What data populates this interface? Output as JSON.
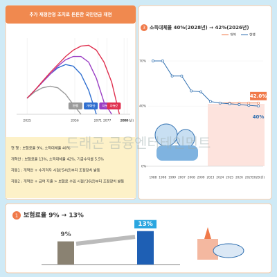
{
  "watermark": "드래곤 금융엔터테인먼트",
  "notes": [
    "현 행 : 보험료율 9%, 소득대체율 40%",
    "개혁안 : 보험료율 13%, 소득대체율 42%, 기금수익률 5.5%",
    "자동1 : 개혁안 + 수지적자 시점('54년)부터 조정장치 발동",
    "자동2 : 개혁안 + 급여 지출 > 보험료 수입 시점('36년)부터 조정장치 발동"
  ],
  "chart_data": [
    {
      "type": "line",
      "title": "추가 재정안정 조치로 튼튼한 국민연금 재현",
      "x": [
        2025,
        2030,
        2035,
        2040,
        2045,
        2050,
        2055,
        2060,
        2065,
        2070,
        2075,
        2080,
        2085
      ],
      "xlim": [
        2020,
        2092
      ],
      "ylim": [
        0,
        95
      ],
      "xticks": [
        2025,
        2056,
        2071,
        2077,
        2088,
        {
          "value": 2090,
          "label": "2090(년)"
        }
      ],
      "series": [
        {
          "name": "현행",
          "color": "#9a9a9a",
          "values": [
            20,
            28,
            33,
            35,
            33,
            25,
            12,
            0,
            null,
            null,
            null,
            null,
            null
          ]
        },
        {
          "name": "개혁안",
          "color": "#2f6fd0",
          "values": [
            20,
            30,
            40,
            50,
            58,
            62,
            60,
            50,
            30,
            0,
            null,
            null,
            null
          ]
        },
        {
          "name": "자동1",
          "color": "#9b3fc4",
          "values": [
            20,
            30,
            40,
            50,
            60,
            68,
            72,
            72,
            65,
            45,
            15,
            0,
            null
          ]
        },
        {
          "name": "자동2",
          "color": "#e0304f",
          "values": [
            20,
            30,
            41,
            52,
            62,
            72,
            80,
            85,
            86,
            80,
            65,
            40,
            0
          ]
        }
      ]
    },
    {
      "type": "line",
      "badge": "3",
      "title": "소득대체율 40%(2028년) → 42%(2026년)",
      "categories": [
        "1988",
        "1998",
        "1999",
        "2007",
        "2008",
        "2009",
        "2023",
        "2024",
        "2025",
        "2026",
        "2027",
        "2028(년)"
      ],
      "ylim": [
        0,
        70
      ],
      "yticks": [
        {
          "value": 70,
          "label": "70%"
        },
        {
          "value": 40,
          "label": "40%"
        },
        {
          "value": 0,
          "label": "0%"
        }
      ],
      "series": [
        {
          "name": "개혁",
          "color": "#f07a4a",
          "values": [
            null,
            null,
            null,
            null,
            null,
            null,
            null,
            42,
            42,
            42,
            42,
            42
          ]
        },
        {
          "name": "현행",
          "color": "#2f6fb0",
          "values": [
            70,
            70,
            60,
            60,
            50,
            49.5,
            43,
            42,
            41.5,
            41,
            40.5,
            40
          ]
        }
      ],
      "annotations": [
        {
          "value": 42,
          "label": "42.0%"
        },
        {
          "value": 40,
          "label": "40%"
        }
      ]
    },
    {
      "type": "bar",
      "badge": "1",
      "title": "보험료율 9% → 13%",
      "values": [
        9,
        13
      ],
      "value_labels": [
        "9%",
        "13%"
      ],
      "colors": [
        "#8a8272",
        "#1e5fb4"
      ],
      "ylim": [
        0,
        14
      ]
    }
  ]
}
